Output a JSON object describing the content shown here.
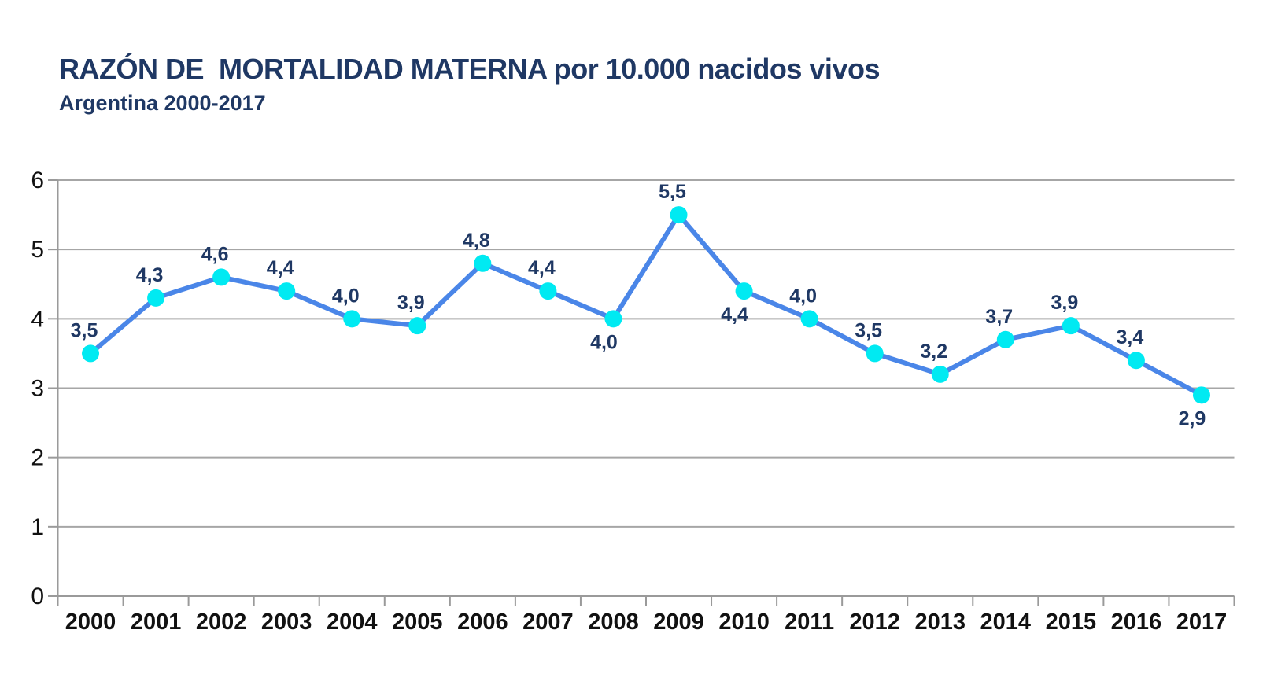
{
  "header": {
    "title": "RAZÓN DE  MORTALIDAD MATERNA por 10.000 nacidos vivos",
    "subtitle": "Argentina 2000-2017"
  },
  "chart_data": {
    "type": "line",
    "title": "RAZÓN DE  MORTALIDAD MATERNA por 10.000 nacidos vivos",
    "subtitle": "Argentina 2000-2017",
    "xlabel": "",
    "ylabel": "",
    "categories": [
      "2000",
      "2001",
      "2002",
      "2003",
      "2004",
      "2005",
      "2006",
      "2007",
      "2008",
      "2009",
      "2010",
      "2011",
      "2012",
      "2013",
      "2014",
      "2015",
      "2016",
      "2017"
    ],
    "values": [
      3.5,
      4.3,
      4.6,
      4.4,
      4.0,
      3.9,
      4.8,
      4.4,
      4.0,
      5.5,
      4.4,
      4.0,
      3.5,
      3.2,
      3.7,
      3.9,
      3.4,
      2.9
    ],
    "point_labels": [
      "3,5",
      "4,3",
      "4,6",
      "4,4",
      "4,0",
      "3,9",
      "4,8",
      "4,4",
      "4,0",
      "5,5",
      "4,4",
      "4,0",
      "3,5",
      "3,2",
      "3,7",
      "3,9",
      "3,4",
      "2,9"
    ],
    "label_side": [
      "above",
      "above",
      "above",
      "above",
      "above",
      "above",
      "above",
      "above",
      "below",
      "above",
      "below",
      "above",
      "above",
      "above",
      "above",
      "above",
      "above",
      "below"
    ],
    "ylim": [
      0,
      6
    ],
    "y_ticks": [
      "0",
      "1",
      "2",
      "3",
      "4",
      "5",
      "6"
    ],
    "grid": true,
    "legend": "none",
    "colors": {
      "line": "#4a86e8",
      "marker": "#00eaf2",
      "data_label": "#1f3864",
      "title_text": "#1f3864",
      "axis_text": "#111111",
      "gridline": "#a6a6a6",
      "axis_line": "#9a9a9a"
    }
  }
}
